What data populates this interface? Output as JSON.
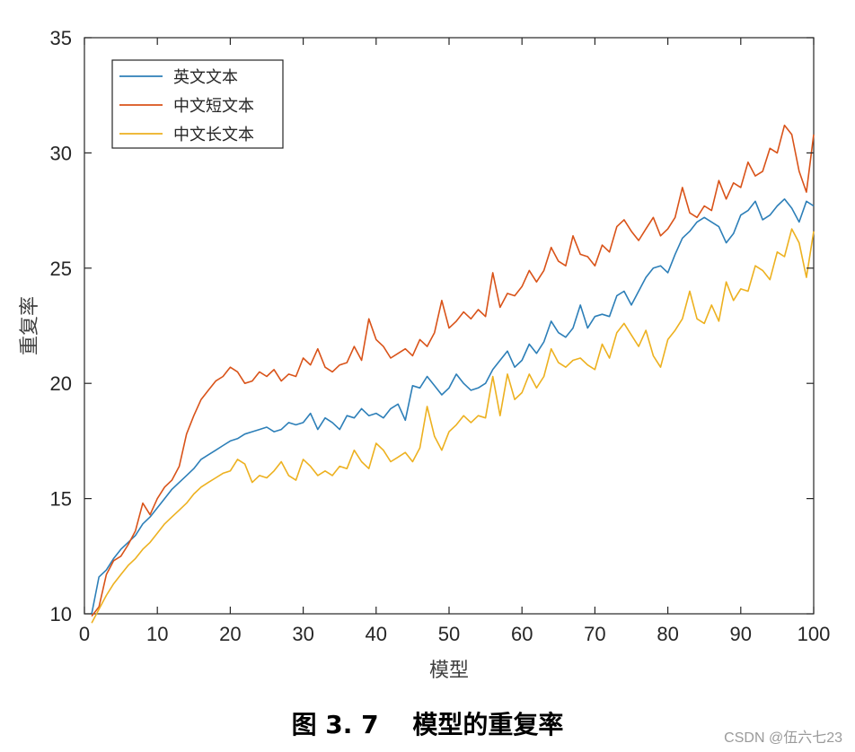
{
  "chart_data": {
    "type": "line",
    "title": "",
    "xlabel": "模型",
    "ylabel": "重复率",
    "xlim": [
      0,
      100
    ],
    "ylim": [
      10,
      35
    ],
    "xticks": [
      0,
      10,
      20,
      30,
      40,
      50,
      60,
      70,
      80,
      90,
      100
    ],
    "yticks": [
      10,
      15,
      20,
      25,
      30,
      35
    ],
    "grid": false,
    "legend_position": "top-left",
    "x": [
      1,
      2,
      3,
      4,
      5,
      6,
      7,
      8,
      9,
      10,
      11,
      12,
      13,
      14,
      15,
      16,
      17,
      18,
      19,
      20,
      21,
      22,
      23,
      24,
      25,
      26,
      27,
      28,
      29,
      30,
      31,
      32,
      33,
      34,
      35,
      36,
      37,
      38,
      39,
      40,
      41,
      42,
      43,
      44,
      45,
      46,
      47,
      48,
      49,
      50,
      51,
      52,
      53,
      54,
      55,
      56,
      57,
      58,
      59,
      60,
      61,
      62,
      63,
      64,
      65,
      66,
      67,
      68,
      69,
      70,
      71,
      72,
      73,
      74,
      75,
      76,
      77,
      78,
      79,
      80,
      81,
      82,
      83,
      84,
      85,
      86,
      87,
      88,
      89,
      90,
      91,
      92,
      93,
      94,
      95,
      96,
      97,
      98,
      99,
      100
    ],
    "series": [
      {
        "name": "英文文本",
        "color": "#2d7fb8",
        "values": [
          10.0,
          11.6,
          11.9,
          12.4,
          12.8,
          13.1,
          13.4,
          13.9,
          14.2,
          14.6,
          15.0,
          15.4,
          15.7,
          16.0,
          16.3,
          16.7,
          16.9,
          17.1,
          17.3,
          17.5,
          17.6,
          17.8,
          17.9,
          18.0,
          18.1,
          17.9,
          18.0,
          18.3,
          18.2,
          18.3,
          18.7,
          18.0,
          18.5,
          18.3,
          18.0,
          18.6,
          18.5,
          18.9,
          18.6,
          18.7,
          18.5,
          18.9,
          19.1,
          18.4,
          19.9,
          19.8,
          20.3,
          19.9,
          19.5,
          19.8,
          20.4,
          20.0,
          19.7,
          19.8,
          20.0,
          20.6,
          21.0,
          21.4,
          20.7,
          21.0,
          21.7,
          21.3,
          21.8,
          22.7,
          22.2,
          22.0,
          22.4,
          23.4,
          22.4,
          22.9,
          23.0,
          22.9,
          23.8,
          24.0,
          23.4,
          24.0,
          24.6,
          25.0,
          25.1,
          24.8,
          25.6,
          26.3,
          26.6,
          27.0,
          27.2,
          27.0,
          26.8,
          26.1,
          26.5,
          27.3,
          27.5,
          27.9,
          27.1,
          27.3,
          27.7,
          28.0,
          27.6,
          27.0,
          27.9,
          27.7
        ]
      },
      {
        "name": "中文短文本",
        "color": "#d95319",
        "values": [
          9.9,
          10.3,
          11.7,
          12.3,
          12.5,
          13.0,
          13.6,
          14.8,
          14.3,
          15.0,
          15.5,
          15.8,
          16.4,
          17.8,
          18.6,
          19.3,
          19.7,
          20.1,
          20.3,
          20.7,
          20.5,
          20.0,
          20.1,
          20.5,
          20.3,
          20.6,
          20.1,
          20.4,
          20.3,
          21.1,
          20.8,
          21.5,
          20.7,
          20.5,
          20.8,
          20.9,
          21.6,
          21.0,
          22.8,
          21.9,
          21.6,
          21.1,
          21.3,
          21.5,
          21.2,
          21.9,
          21.6,
          22.2,
          23.6,
          22.4,
          22.7,
          23.1,
          22.8,
          23.2,
          22.9,
          24.8,
          23.3,
          23.9,
          23.8,
          24.2,
          24.9,
          24.4,
          24.9,
          25.9,
          25.3,
          25.1,
          26.4,
          25.6,
          25.5,
          25.1,
          26.0,
          25.7,
          26.8,
          27.1,
          26.6,
          26.2,
          26.7,
          27.2,
          26.4,
          26.7,
          27.2,
          28.5,
          27.4,
          27.2,
          27.7,
          27.5,
          28.8,
          28.0,
          28.7,
          28.5,
          29.6,
          29.0,
          29.2,
          30.2,
          30.0,
          31.2,
          30.8,
          29.2,
          28.3,
          30.8
        ]
      },
      {
        "name": "中文长文本",
        "color": "#edb120",
        "values": [
          9.6,
          10.2,
          10.8,
          11.3,
          11.7,
          12.1,
          12.4,
          12.8,
          13.1,
          13.5,
          13.9,
          14.2,
          14.5,
          14.8,
          15.2,
          15.5,
          15.7,
          15.9,
          16.1,
          16.2,
          16.7,
          16.5,
          15.7,
          16.0,
          15.9,
          16.2,
          16.6,
          16.0,
          15.8,
          16.7,
          16.4,
          16.0,
          16.2,
          16.0,
          16.4,
          16.3,
          17.1,
          16.6,
          16.3,
          17.4,
          17.1,
          16.6,
          16.8,
          17.0,
          16.6,
          17.2,
          19.0,
          17.7,
          17.1,
          17.9,
          18.2,
          18.6,
          18.3,
          18.6,
          18.5,
          20.3,
          18.6,
          20.4,
          19.3,
          19.6,
          20.4,
          19.8,
          20.3,
          21.5,
          20.9,
          20.7,
          21.0,
          21.1,
          20.8,
          20.6,
          21.7,
          21.1,
          22.2,
          22.6,
          22.1,
          21.6,
          22.3,
          21.2,
          20.7,
          21.9,
          22.3,
          22.8,
          24.0,
          22.8,
          22.6,
          23.4,
          22.7,
          24.4,
          23.6,
          24.1,
          24.0,
          25.1,
          24.9,
          24.5,
          25.7,
          25.5,
          26.7,
          26.1,
          24.6,
          26.6
        ]
      }
    ]
  },
  "caption": "图 3. 7　 模型的重复率",
  "watermark": "CSDN @伍六七23"
}
